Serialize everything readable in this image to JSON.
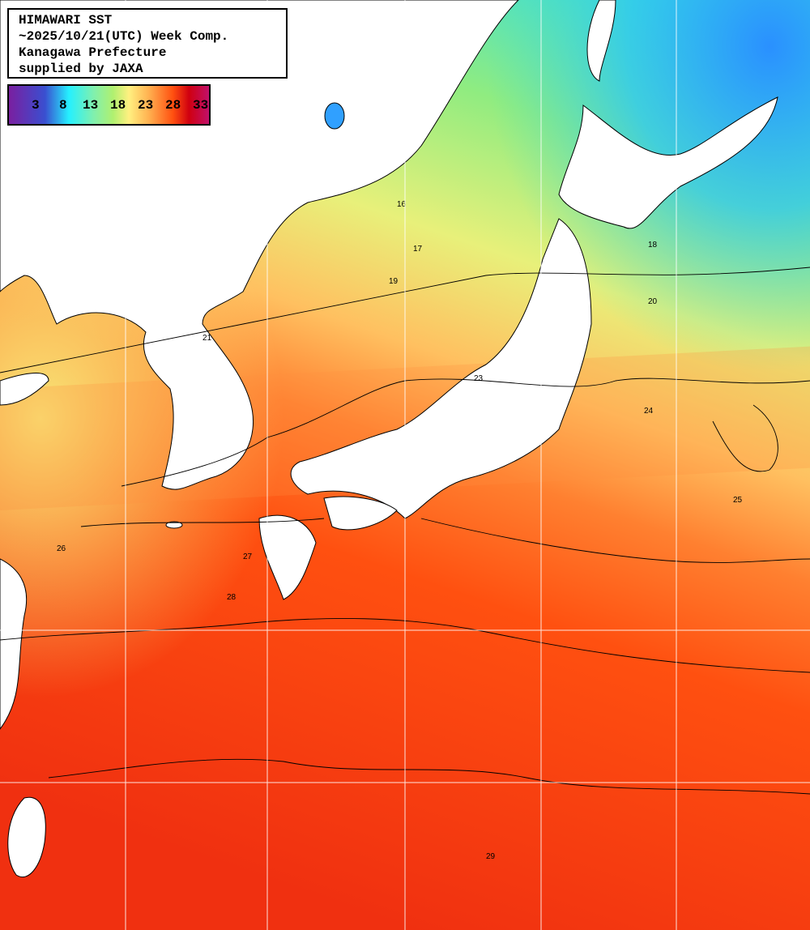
{
  "title": {
    "lines": [
      "HIMAWARI SST",
      "~2025/10/21(UTC) Week Comp.",
      "Kanagawa Prefecture",
      "supplied by JAXA"
    ]
  },
  "legend": {
    "ticks": [
      "3",
      "8",
      "13",
      "18",
      "23",
      "28",
      "33"
    ],
    "unit_colors": {
      "3": "#3a4fd0",
      "8": "#25f0ff",
      "13": "#7ef0b0",
      "18": "#b0f070",
      "23": "#fff080",
      "28": "#ff5010",
      "33": "#d00010"
    }
  },
  "map": {
    "land_color": "#ffffff",
    "grid_color": "#ffffff",
    "contour_color": "#000000",
    "contour_labels": [
      "16",
      "17",
      "18",
      "19",
      "20",
      "21",
      "23",
      "24",
      "25",
      "26",
      "27",
      "28",
      "29"
    ]
  }
}
